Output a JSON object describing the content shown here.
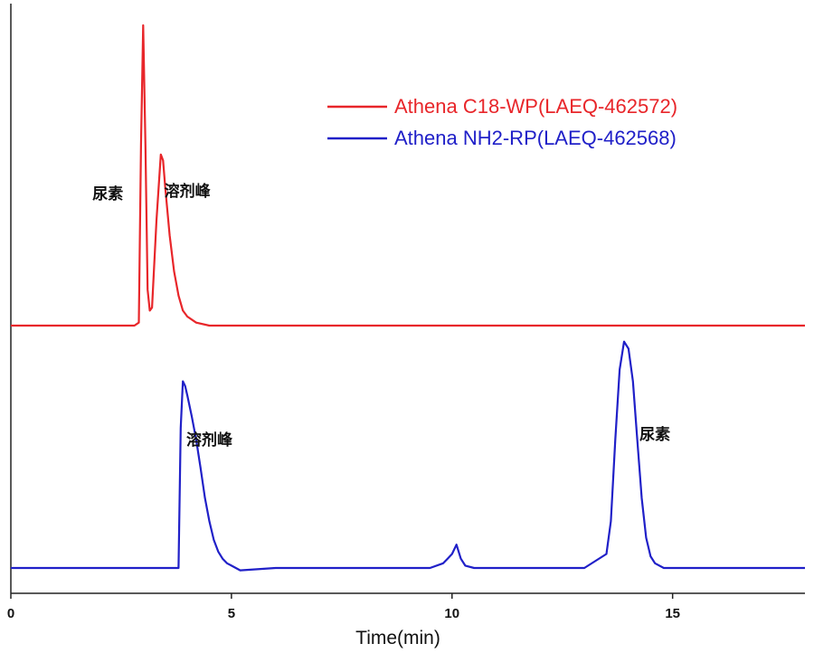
{
  "chart_data": {
    "type": "line",
    "title": "",
    "xlabel": "Time(min)",
    "ylabel": "",
    "xlim": [
      0,
      18
    ],
    "x_ticks": [
      0,
      5,
      10,
      15
    ],
    "x_tick_labels": [
      "0",
      "5",
      "10",
      "15"
    ],
    "grid": false,
    "legend_position": "top-right",
    "series": [
      {
        "name": "Athena C18-WP(LAEQ-462572)",
        "color": "#e8262a",
        "baseline_offset": 1.0,
        "x": [
          0.0,
          2.8,
          2.9,
          2.95,
          3.0,
          3.05,
          3.1,
          3.15,
          3.2,
          3.3,
          3.4,
          3.45,
          3.5,
          3.6,
          3.7,
          3.8,
          3.9,
          4.0,
          4.2,
          4.5,
          5.0,
          10.0,
          18.0
        ],
        "y": [
          0.0,
          0.0,
          0.01,
          0.6,
          1.0,
          0.6,
          0.12,
          0.05,
          0.06,
          0.35,
          0.57,
          0.55,
          0.46,
          0.3,
          0.18,
          0.1,
          0.05,
          0.03,
          0.01,
          0.0,
          0.0,
          0.0,
          0.0
        ]
      },
      {
        "name": "Athena NH2-RP(LAEQ-462568)",
        "color": "#2020c8",
        "baseline_offset": 0.0,
        "x": [
          0.0,
          3.5,
          3.8,
          3.85,
          3.9,
          3.95,
          4.0,
          4.1,
          4.2,
          4.3,
          4.4,
          4.5,
          4.6,
          4.7,
          4.8,
          4.9,
          5.0,
          5.2,
          6.0,
          9.5,
          9.8,
          9.9,
          10.0,
          10.1,
          10.2,
          10.3,
          10.5,
          13.0,
          13.5,
          13.6,
          13.7,
          13.8,
          13.9,
          14.0,
          14.1,
          14.2,
          14.3,
          14.4,
          14.5,
          14.6,
          14.8,
          15.0,
          18.0
        ],
        "y": [
          0.0,
          0.0,
          0.0,
          0.6,
          0.8,
          0.78,
          0.74,
          0.65,
          0.55,
          0.43,
          0.3,
          0.2,
          0.12,
          0.07,
          0.04,
          0.02,
          0.01,
          -0.01,
          0.0,
          0.0,
          0.02,
          0.04,
          0.06,
          0.1,
          0.04,
          0.01,
          0.0,
          0.0,
          0.06,
          0.2,
          0.55,
          0.85,
          0.97,
          0.94,
          0.8,
          0.55,
          0.3,
          0.13,
          0.05,
          0.02,
          0.0,
          0.0,
          0.0
        ]
      }
    ],
    "annotations": [
      {
        "text": "尿素",
        "series": 0,
        "x": 2.2
      },
      {
        "text": "溶剂峰",
        "series": 0,
        "x": 4.0
      },
      {
        "text": "溶剂峰",
        "series": 1,
        "x": 4.5
      },
      {
        "text": "尿素",
        "series": 1,
        "x": 14.6
      }
    ]
  }
}
